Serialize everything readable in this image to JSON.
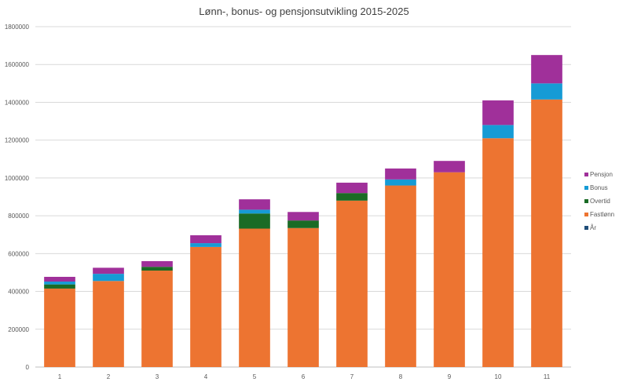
{
  "chart_data": {
    "type": "bar",
    "stacked": true,
    "title": "Lønn-, bonus- og pensjonsutvikling 2015-2025",
    "xlabel": "",
    "ylabel": "",
    "ylim": [
      0,
      1800000
    ],
    "yticks": [
      0,
      200000,
      400000,
      600000,
      800000,
      1000000,
      1200000,
      1400000,
      1600000,
      1800000
    ],
    "grid": true,
    "legend_position": "right",
    "categories": [
      "1",
      "2",
      "3",
      "4",
      "5",
      "6",
      "7",
      "8",
      "9",
      "10",
      "11"
    ],
    "series": [
      {
        "name": "År",
        "color": "#1f4e79",
        "values": [
          2015,
          2016,
          2017,
          2018,
          2019,
          2020,
          2021,
          2022,
          2023,
          2024,
          2025
        ]
      },
      {
        "name": "Fastlønn",
        "color": "#ed7431",
        "values": [
          415000,
          455000,
          510000,
          635000,
          732000,
          735000,
          880000,
          960000,
          1030000,
          1210000,
          1415000
        ]
      },
      {
        "name": "Overtid",
        "color": "#1a6b25",
        "values": [
          22000,
          0,
          20000,
          0,
          80000,
          40000,
          40000,
          0,
          0,
          0,
          0
        ]
      },
      {
        "name": "Bonus",
        "color": "#169bd5",
        "values": [
          15000,
          38000,
          0,
          20000,
          20000,
          0,
          0,
          32000,
          0,
          70000,
          85000
        ]
      },
      {
        "name": "Pensjon",
        "color": "#a0309a",
        "values": [
          25000,
          32000,
          30000,
          42000,
          55000,
          45000,
          55000,
          58000,
          60000,
          130000,
          150000
        ]
      }
    ],
    "legend_order": [
      "Pensjon",
      "Bonus",
      "Overtid",
      "Fastlønn",
      "År"
    ]
  },
  "style": {
    "gridline_color": "#d9d9d9",
    "axis_color": "#bfbfbf",
    "text_color": "#595959",
    "title_color": "#404040"
  }
}
